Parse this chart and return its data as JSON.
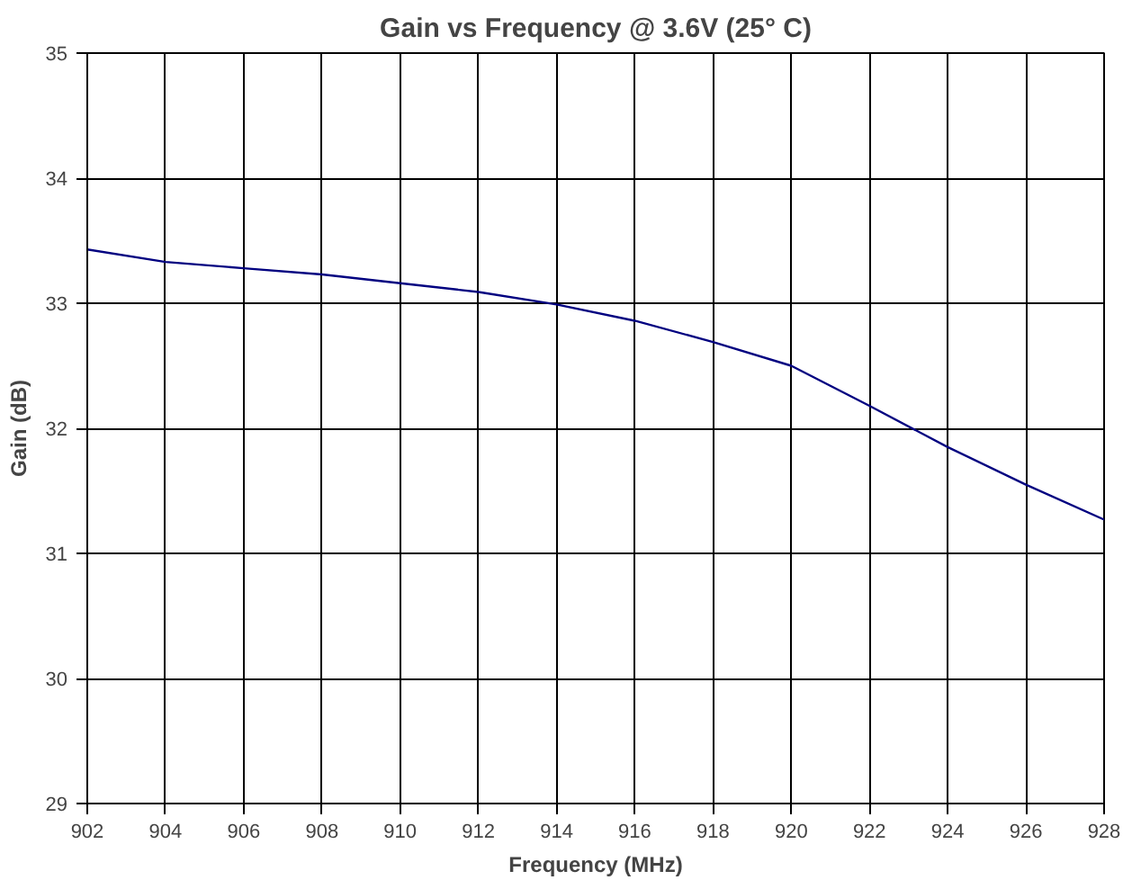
{
  "chart_data": {
    "type": "line",
    "title": "Gain vs Frequency @ 3.6V (25° C)",
    "xlabel": "Frequency (MHz)",
    "ylabel": "Gain (dB)",
    "x": [
      902,
      904,
      906,
      908,
      910,
      912,
      914,
      916,
      918,
      920,
      922,
      924,
      926,
      928
    ],
    "series": [
      {
        "color": "#000080",
        "values": [
          33.43,
          33.33,
          33.28,
          33.23,
          33.16,
          33.09,
          32.99,
          32.86,
          32.69,
          32.5,
          32.18,
          31.85,
          31.55,
          31.27
        ]
      }
    ],
    "xlim": [
      902,
      928
    ],
    "xticks": [
      902,
      904,
      906,
      908,
      910,
      912,
      914,
      916,
      918,
      920,
      922,
      924,
      926,
      928
    ],
    "ylim": [
      29,
      35
    ],
    "yticks": [
      29,
      30,
      31,
      32,
      33,
      34,
      35
    ],
    "grid": true,
    "marker": "none",
    "line_style": "solid"
  }
}
